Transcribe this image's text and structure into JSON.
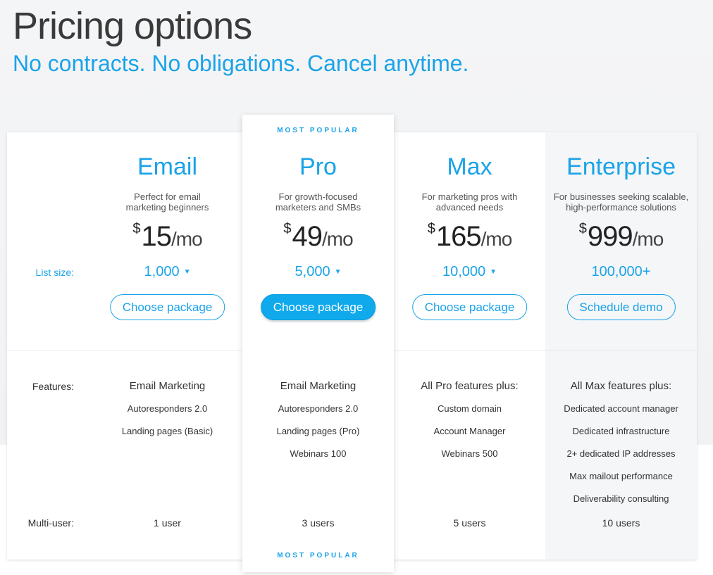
{
  "header": {
    "title": "Pricing options",
    "subtitle": "No contracts. No obligations. Cancel anytime."
  },
  "labels": {
    "list_size": "List size:",
    "features": "Features:",
    "multi_user": "Multi-user:"
  },
  "badge": "MOST POPULAR",
  "plans": [
    {
      "name": "Email",
      "desc1": "Perfect for email",
      "desc2": "marketing beginners",
      "currency": "$",
      "price": "15",
      "period": "/mo",
      "list_size": "1,000",
      "has_dropdown": true,
      "button": "Choose package",
      "features_header": "Email Marketing",
      "features": [
        "Autoresponders 2.0",
        "Landing pages (Basic)"
      ],
      "users": "1 user"
    },
    {
      "name": "Pro",
      "desc1": "For growth-focused",
      "desc2": "marketers and SMBs",
      "currency": "$",
      "price": "49",
      "period": "/mo",
      "list_size": "5,000",
      "has_dropdown": true,
      "button": "Choose package",
      "features_header": "Email Marketing",
      "features": [
        "Autoresponders 2.0",
        "Landing pages (Pro)",
        "Webinars 100"
      ],
      "users": "3 users"
    },
    {
      "name": "Max",
      "desc1": "For marketing pros with",
      "desc2": "advanced needs",
      "currency": "$",
      "price": "165",
      "period": "/mo",
      "list_size": "10,000",
      "has_dropdown": true,
      "button": "Choose package",
      "features_header": "All Pro features plus:",
      "features": [
        "Custom domain",
        "Account Manager",
        "Webinars 500"
      ],
      "users": "5 users"
    },
    {
      "name": "Enterprise",
      "desc1": "For businesses seeking scalable,",
      "desc2": "high-performance solutions",
      "currency": "$",
      "price": "999",
      "period": "/mo",
      "list_size": "100,000+",
      "has_dropdown": false,
      "button": "Schedule demo",
      "features_header": "All Max features plus:",
      "features": [
        "Dedicated account manager",
        "Dedicated infrastructure",
        "2+ dedicated IP addresses",
        "Max mailout performance",
        "Deliverability consulting"
      ],
      "users": "10 users"
    }
  ],
  "colors": {
    "accent": "#1aa3e8",
    "primary_button": "#0fa9ec"
  }
}
